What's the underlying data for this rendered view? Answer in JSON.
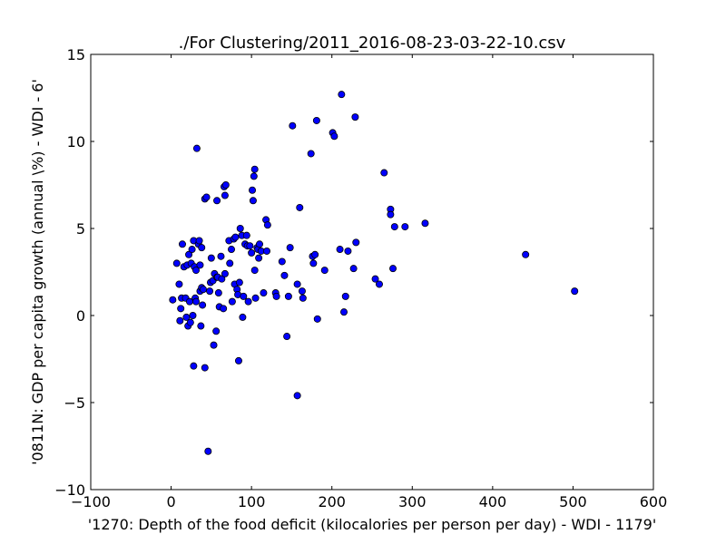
{
  "chart_data": {
    "type": "scatter",
    "title": "./For Clustering/2011_2016-08-23-03-22-10.csv",
    "xlabel": "'1270: Depth of the food deficit  (kilocalories per person per day) - WDI - 1179'",
    "ylabel": "'0811N: GDP per capita growth  (annual \\%) - WDI - 6'",
    "xlim": [
      -100,
      600
    ],
    "ylim": [
      -10,
      15
    ],
    "xticks": [
      -100,
      0,
      100,
      200,
      300,
      400,
      500,
      600
    ],
    "yticks": [
      -10,
      -5,
      0,
      5,
      10,
      15
    ],
    "xtick_labels": [
      "−100",
      "0",
      "100",
      "200",
      "300",
      "400",
      "500",
      "600"
    ],
    "ytick_labels": [
      "−10",
      "−5",
      "0",
      "5",
      "10",
      "15"
    ],
    "grid": false,
    "legend": "none",
    "marker_color": "#0000ff",
    "marker_edge_color": "#000000",
    "points": [
      [
        2,
        0.9
      ],
      [
        7,
        3.0
      ],
      [
        10,
        1.8
      ],
      [
        11,
        -0.3
      ],
      [
        12,
        0.4
      ],
      [
        13,
        1.0
      ],
      [
        14,
        4.1
      ],
      [
        16,
        2.8
      ],
      [
        18,
        1.0
      ],
      [
        19,
        -0.1
      ],
      [
        20,
        2.9
      ],
      [
        21,
        -0.6
      ],
      [
        22,
        3.5
      ],
      [
        23,
        0.8
      ],
      [
        24,
        -0.4
      ],
      [
        25,
        3.0
      ],
      [
        26,
        3.8
      ],
      [
        27,
        0.0
      ],
      [
        28,
        4.3
      ],
      [
        28,
        -2.9
      ],
      [
        29,
        2.8
      ],
      [
        30,
        1.0
      ],
      [
        31,
        0.8
      ],
      [
        31,
        2.6
      ],
      [
        32,
        9.6
      ],
      [
        34,
        4.1
      ],
      [
        35,
        4.3
      ],
      [
        36,
        2.9
      ],
      [
        36,
        1.4
      ],
      [
        37,
        -0.6
      ],
      [
        38,
        3.9
      ],
      [
        38,
        1.6
      ],
      [
        39,
        0.6
      ],
      [
        40,
        1.5
      ],
      [
        42,
        6.7
      ],
      [
        42,
        -3.0
      ],
      [
        44,
        6.8
      ],
      [
        46,
        -7.8
      ],
      [
        48,
        1.4
      ],
      [
        49,
        1.9
      ],
      [
        50,
        3.3
      ],
      [
        52,
        2.0
      ],
      [
        53,
        -1.7
      ],
      [
        54,
        2.4
      ],
      [
        56,
        -0.9
      ],
      [
        57,
        6.6
      ],
      [
        57,
        2.2
      ],
      [
        58,
        2.2
      ],
      [
        59,
        1.3
      ],
      [
        60,
        0.5
      ],
      [
        62,
        3.4
      ],
      [
        63,
        2.1
      ],
      [
        65,
        0.4
      ],
      [
        66,
        7.4
      ],
      [
        67,
        2.4
      ],
      [
        67,
        6.9
      ],
      [
        68,
        7.5
      ],
      [
        72,
        4.3
      ],
      [
        73,
        3.0
      ],
      [
        75,
        3.8
      ],
      [
        76,
        0.8
      ],
      [
        78,
        4.4
      ],
      [
        79,
        1.8
      ],
      [
        80,
        4.5
      ],
      [
        82,
        1.5
      ],
      [
        83,
        1.2
      ],
      [
        84,
        -2.6
      ],
      [
        85,
        1.9
      ],
      [
        86,
        5.0
      ],
      [
        88,
        4.6
      ],
      [
        89,
        -0.1
      ],
      [
        90,
        1.1
      ],
      [
        92,
        4.1
      ],
      [
        94,
        4.6
      ],
      [
        95,
        4.0
      ],
      [
        96,
        0.8
      ],
      [
        98,
        4.0
      ],
      [
        100,
        3.6
      ],
      [
        101,
        7.2
      ],
      [
        102,
        6.6
      ],
      [
        103,
        8.0
      ],
      [
        104,
        8.4
      ],
      [
        104,
        2.6
      ],
      [
        105,
        1.0
      ],
      [
        107,
        3.9
      ],
      [
        108,
        3.8
      ],
      [
        109,
        3.3
      ],
      [
        110,
        4.1
      ],
      [
        112,
        3.7
      ],
      [
        115,
        1.3
      ],
      [
        118,
        5.5
      ],
      [
        119,
        3.7
      ],
      [
        120,
        5.2
      ],
      [
        130,
        1.3
      ],
      [
        131,
        1.1
      ],
      [
        138,
        3.1
      ],
      [
        141,
        2.3
      ],
      [
        144,
        -1.2
      ],
      [
        146,
        1.1
      ],
      [
        148,
        3.9
      ],
      [
        151,
        10.9
      ],
      [
        157,
        -4.6
      ],
      [
        157,
        1.8
      ],
      [
        160,
        6.2
      ],
      [
        163,
        1.4
      ],
      [
        164,
        1.0
      ],
      [
        174,
        9.3
      ],
      [
        176,
        3.4
      ],
      [
        177,
        3.0
      ],
      [
        179,
        3.5
      ],
      [
        181,
        11.2
      ],
      [
        182,
        -0.2
      ],
      [
        191,
        2.6
      ],
      [
        201,
        10.5
      ],
      [
        203,
        10.3
      ],
      [
        210,
        3.8
      ],
      [
        212,
        12.7
      ],
      [
        215,
        0.2
      ],
      [
        217,
        1.1
      ],
      [
        220,
        3.7
      ],
      [
        227,
        2.7
      ],
      [
        229,
        11.4
      ],
      [
        230,
        4.2
      ],
      [
        254,
        2.1
      ],
      [
        259,
        1.8
      ],
      [
        265,
        8.2
      ],
      [
        273,
        6.1
      ],
      [
        273,
        5.8
      ],
      [
        276,
        2.7
      ],
      [
        278,
        5.1
      ],
      [
        291,
        5.1
      ],
      [
        316,
        5.3
      ],
      [
        441,
        3.5
      ],
      [
        502,
        1.4
      ]
    ]
  }
}
